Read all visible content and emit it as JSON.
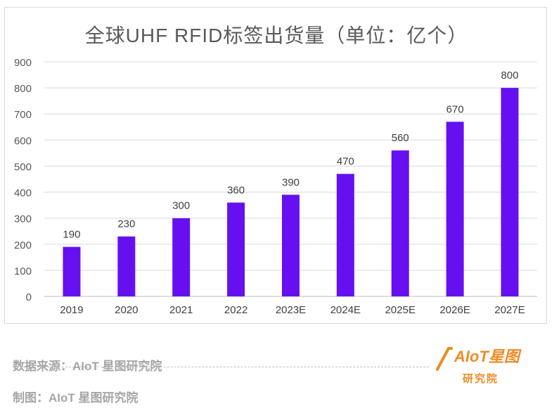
{
  "chart_data": {
    "type": "bar",
    "title": "全球UHF RFID标签出货量（单位：亿个）",
    "categories": [
      "2019",
      "2020",
      "2021",
      "2022",
      "2023E",
      "2024E",
      "2025E",
      "2026E",
      "2027E"
    ],
    "values": [
      190,
      230,
      300,
      360,
      390,
      470,
      560,
      670,
      800
    ],
    "ylim": [
      0,
      900
    ],
    "yticks": [
      0,
      100,
      200,
      300,
      400,
      500,
      600,
      700,
      800,
      900
    ],
    "grid": true,
    "data_labels": true,
    "bar_color": "#6610f2"
  },
  "footer": {
    "source": "数据来源：AIoT 星图研究院",
    "credit": "制图：AIoT 星图研究院"
  },
  "logo": {
    "text": "AIoT星图",
    "subtext": "研究院",
    "color": "#f08a24"
  }
}
